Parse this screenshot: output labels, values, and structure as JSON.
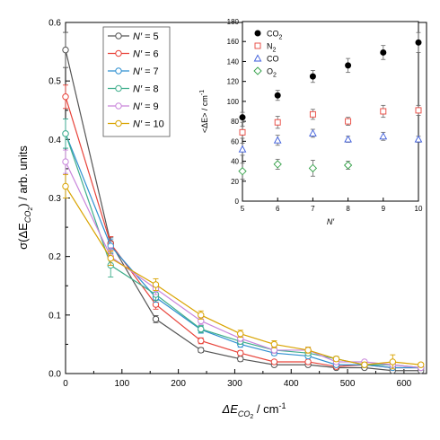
{
  "chart_data": [
    {
      "id": "main",
      "type": "line",
      "xlabel": "ΔE",
      "xlabel_sub": "CO",
      "xlabel_sub2": "2",
      "xlabel_unit": " / cm",
      "xlabel_sup": "-1",
      "ylabel_pre": "σ(ΔE",
      "ylabel_sub": "CO",
      "ylabel_sub2": "2",
      "ylabel_post": ") / arb. units",
      "xlim": [
        0,
        640
      ],
      "ylim": [
        0,
        0.6
      ],
      "xticks": [
        0,
        100,
        200,
        300,
        400,
        500,
        600
      ],
      "yticks": [
        0.0,
        0.1,
        0.2,
        0.3,
        0.4,
        0.5,
        0.6
      ],
      "legend_position": "top-left",
      "grid": false,
      "x": [
        0,
        80,
        160,
        240,
        310,
        370,
        430,
        480,
        530,
        580,
        630
      ],
      "series": [
        {
          "name": "N′ = 5",
          "label_prefix": "N′",
          "label_value": " = 5",
          "color": "#555555",
          "values": [
            0.553,
            0.223,
            0.093,
            0.04,
            0.025,
            0.015,
            0.015,
            0.01,
            0.01,
            0.005,
            0.005
          ],
          "errors": [
            0.03,
            0.01,
            0.006,
            0.004,
            0.004,
            0.003,
            0.003,
            0.002,
            0.002,
            0.002,
            0.002
          ]
        },
        {
          "name": "N′ = 6",
          "label_prefix": "N′",
          "label_value": " = 6",
          "color": "#e8433a",
          "values": [
            0.473,
            0.222,
            0.118,
            0.056,
            0.035,
            0.02,
            0.02,
            0.012,
            0.015,
            0.01,
            0.01
          ],
          "errors": [
            0.02,
            0.012,
            0.008,
            0.005,
            0.004,
            0.003,
            0.003,
            0.002,
            0.003,
            0.002,
            0.002
          ]
        },
        {
          "name": "N′ = 7",
          "label_prefix": "N′",
          "label_value": " = 7",
          "color": "#2f8fd0",
          "values": [
            0.41,
            0.218,
            0.13,
            0.075,
            0.05,
            0.035,
            0.03,
            0.015,
            0.015,
            0.01,
            0.01
          ],
          "errors": [
            0.025,
            0.012,
            0.008,
            0.006,
            0.005,
            0.004,
            0.004,
            0.003,
            0.003,
            0.002,
            0.002
          ]
        },
        {
          "name": "N′ = 8",
          "label_prefix": "N′",
          "label_value": " = 8",
          "color": "#3fae8c",
          "values": [
            0.41,
            0.185,
            0.135,
            0.076,
            0.055,
            0.04,
            0.035,
            0.025,
            0.015,
            0.015,
            0.01
          ],
          "errors": [
            0.025,
            0.02,
            0.01,
            0.006,
            0.005,
            0.005,
            0.004,
            0.004,
            0.003,
            0.003,
            0.002
          ]
        },
        {
          "name": "N′ = 9",
          "label_prefix": "N′",
          "label_value": " = 9",
          "color": "#c985db",
          "values": [
            0.362,
            0.2,
            0.145,
            0.09,
            0.06,
            0.04,
            0.04,
            0.02,
            0.02,
            0.015,
            0.01
          ],
          "errors": [
            0.02,
            0.015,
            0.01,
            0.006,
            0.005,
            0.005,
            0.005,
            0.004,
            0.003,
            0.003,
            0.002
          ]
        },
        {
          "name": "N′ = 10",
          "label_prefix": "N′",
          "label_value": " = 10",
          "color": "#d9a300",
          "values": [
            0.32,
            0.197,
            0.152,
            0.1,
            0.068,
            0.05,
            0.04,
            0.025,
            0.015,
            0.02,
            0.015
          ],
          "errors": [
            0.02,
            0.012,
            0.01,
            0.007,
            0.006,
            0.006,
            0.005,
            0.004,
            0.004,
            0.012,
            0.003
          ]
        }
      ]
    },
    {
      "id": "inset",
      "type": "scatter",
      "xlabel": "N′",
      "ylabel_pre": "<ΔE> / cm",
      "ylabel_sup": "-1",
      "xlim": [
        5,
        10
      ],
      "ylim": [
        0,
        180
      ],
      "xticks": [
        5,
        6,
        7,
        8,
        9,
        10
      ],
      "yticks": [
        0,
        20,
        40,
        60,
        80,
        100,
        120,
        140,
        160,
        180
      ],
      "legend_position": "top-left",
      "grid": false,
      "series": [
        {
          "name": "CO2",
          "label_main": "CO",
          "label_sub": "2",
          "marker": "filled-circle",
          "color": "#000000",
          "x": [
            5,
            6,
            7,
            8,
            9,
            10
          ],
          "values": [
            84,
            106,
            125,
            136,
            149,
            159
          ],
          "errors": [
            5,
            5,
            6,
            7,
            7,
            10
          ]
        },
        {
          "name": "N2",
          "label_main": "N",
          "label_sub": "2",
          "marker": "square",
          "color": "#e8433a",
          "x": [
            5,
            6,
            7,
            8,
            9,
            10
          ],
          "values": [
            69,
            79,
            87,
            80,
            90,
            91
          ],
          "errors": [
            6,
            6,
            5,
            4,
            6,
            5
          ]
        },
        {
          "name": "CO",
          "label_main": "CO",
          "label_sub": "",
          "marker": "triangle",
          "color": "#3b5bdb",
          "x": [
            5,
            6,
            7,
            8,
            9,
            10
          ],
          "values": [
            52,
            61,
            68,
            62,
            65,
            62
          ],
          "errors": [
            6,
            5,
            4,
            3,
            4,
            3
          ]
        },
        {
          "name": "O2",
          "label_main": "O",
          "label_sub": "2",
          "marker": "diamond",
          "color": "#2f9e44",
          "x": [
            5,
            6,
            7,
            8
          ],
          "values": [
            30,
            37,
            33,
            36
          ],
          "errors": [
            8,
            5,
            8,
            4
          ]
        }
      ]
    }
  ]
}
